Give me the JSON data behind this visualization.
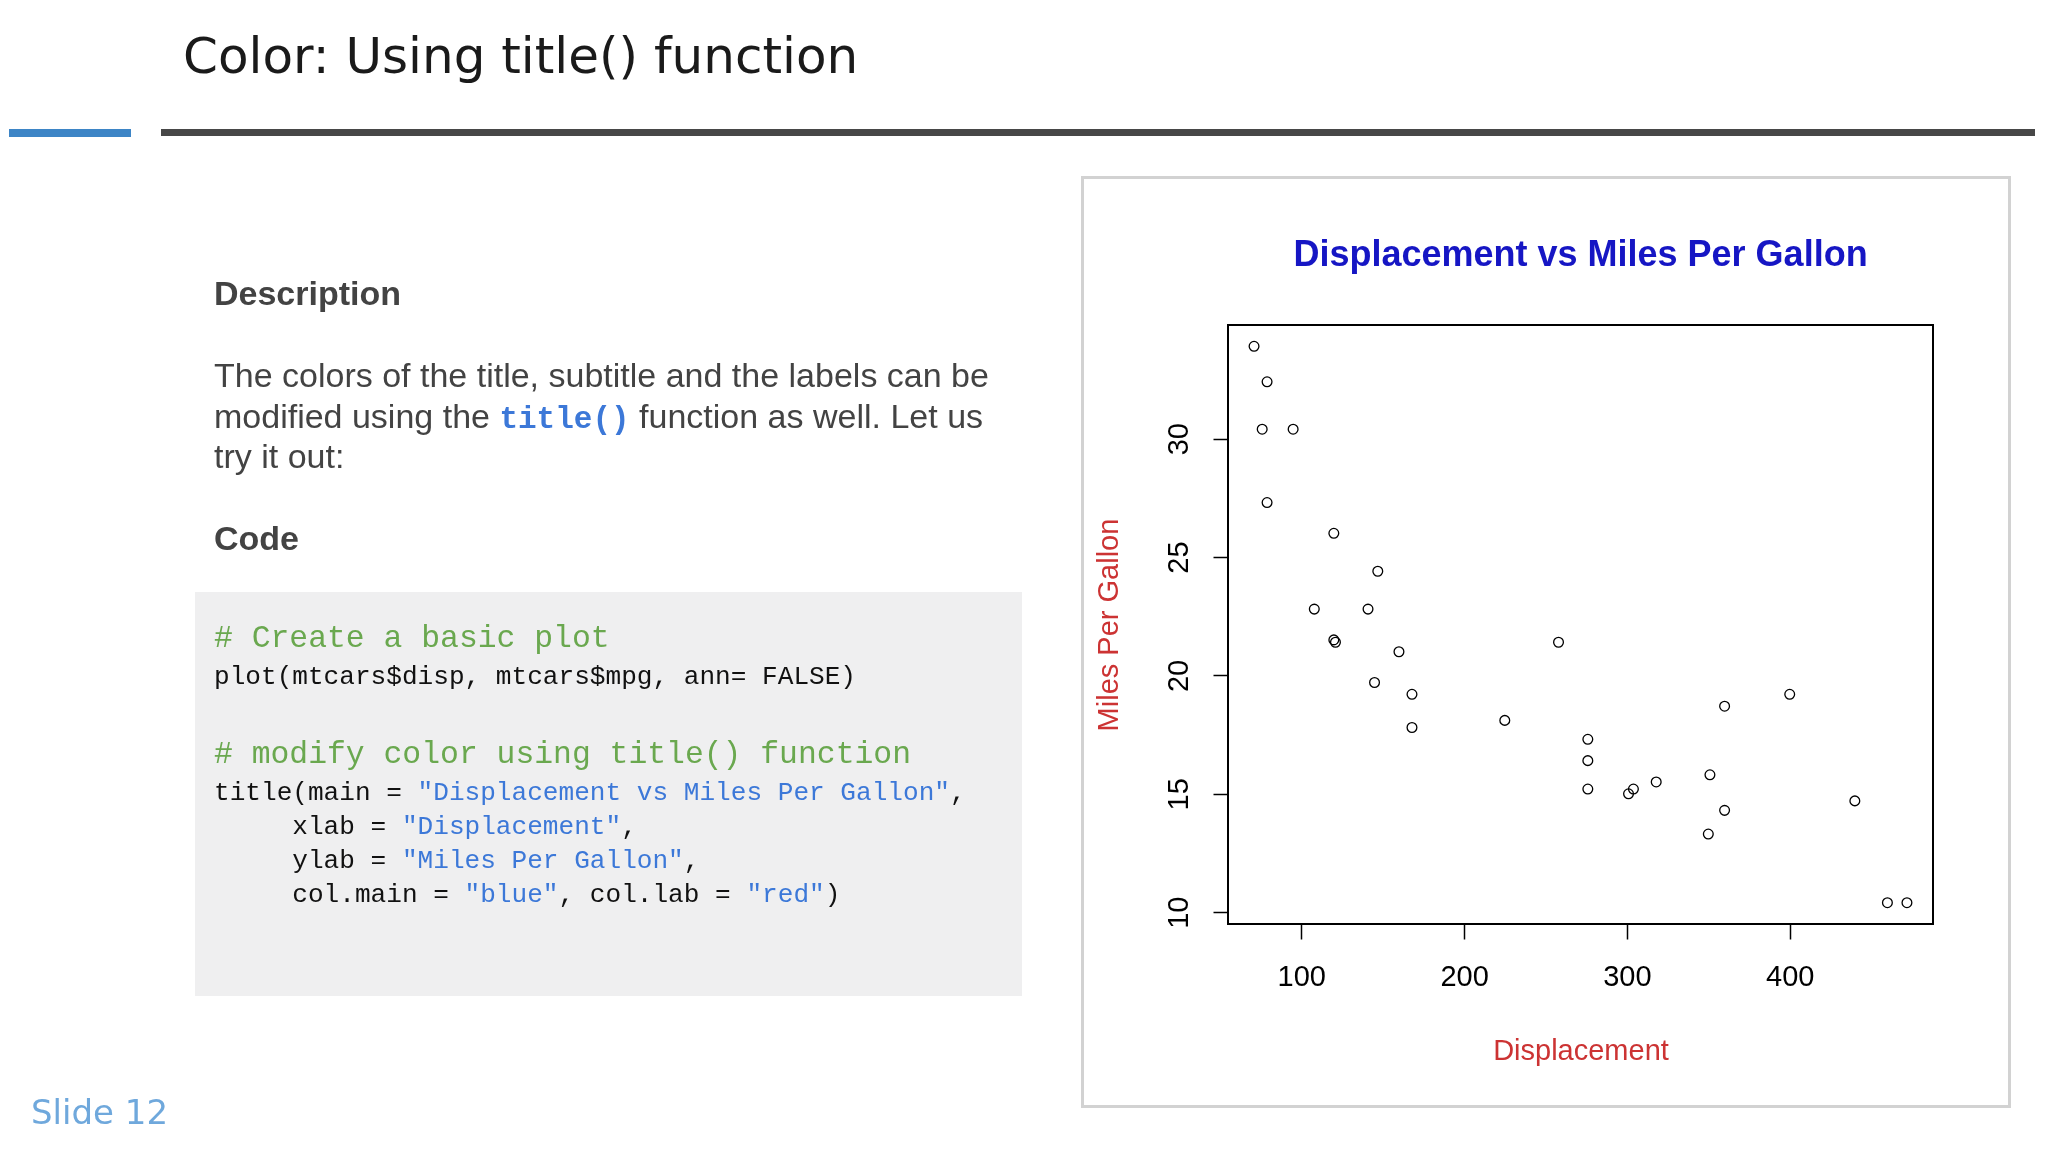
{
  "chart_data": [
    {
      "type": "other",
      "title": "Color: Using title() function",
      "annotations": [
        "Description",
        "The colors of the title, subtitle and the labels can be modified using the title() function as well. Let us try it out:",
        "Code",
        "# Create a basic plot",
        "plot(mtcars$disp, mtcars$mpg, ann= FALSE)",
        "# modify color using title() function",
        "title(main = \"Displacement vs Miles Per Gallon\",",
        "     xlab = \"Displacement\",",
        "     ylab = \"Miles Per Gallon\",",
        "     col.main = \"blue\", col.lab = \"red\")",
        "Slide 12"
      ]
    },
    {
      "type": "scatter",
      "title": "Displacement vs Miles Per Gallon",
      "xlabel": "Displacement",
      "ylabel": "Miles Per Gallon",
      "x": [
        71,
        76,
        79,
        79,
        95,
        108,
        120,
        120,
        121,
        141,
        145,
        147,
        160,
        168,
        168,
        225,
        258,
        276,
        276,
        276,
        301,
        304,
        318,
        350,
        351,
        360,
        360,
        400,
        440,
        460,
        472
      ],
      "values": [
        33.9,
        30.4,
        32.4,
        27.3,
        30.4,
        22.8,
        21.5,
        26.0,
        21.4,
        22.8,
        19.7,
        24.4,
        21.0,
        19.2,
        17.8,
        18.1,
        21.4,
        16.4,
        17.3,
        15.2,
        15.0,
        15.2,
        15.5,
        13.3,
        15.8,
        18.7,
        14.3,
        19.2,
        14.7,
        10.4,
        10.4
      ],
      "color": "#000000",
      "marker": "circle",
      "xlim": [
        55,
        488
      ],
      "ylim": [
        9.5,
        34.8
      ],
      "xticks": [
        100,
        200,
        300,
        400
      ],
      "yticks": [
        10,
        15,
        20,
        25,
        30
      ],
      "grid": false
    }
  ]
}
